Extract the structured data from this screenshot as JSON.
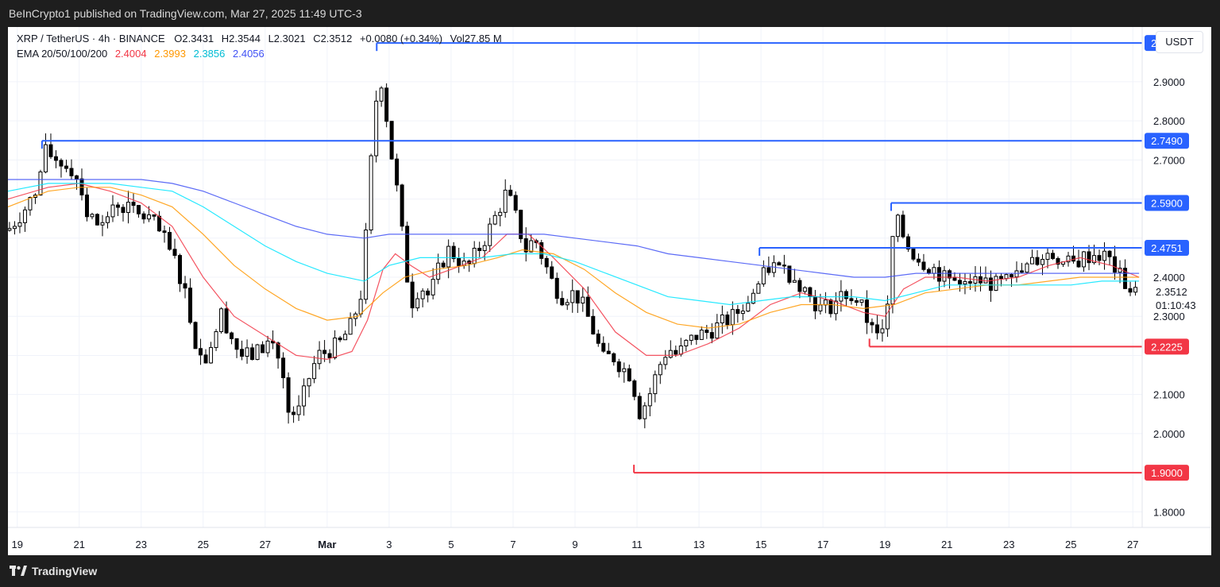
{
  "header": {
    "published": "BeInCrypto1 published on TradingView.com, Mar 27, 2025 11:49 UTC-3"
  },
  "legend": {
    "symbol": "XRP / TetherUS · 4h · BINANCE",
    "open_label": "O",
    "open": "2.3431",
    "high_label": "H",
    "high": "2.3544",
    "low_label": "L",
    "low": "2.3021",
    "close_label": "C",
    "close": "2.3512",
    "change": "+0.0080 (+0.34%)",
    "vol_label": "Vol",
    "vol": "27.85 M",
    "ema_label": "EMA 20/50/100/200",
    "ema20": "2.4004",
    "ema50": "2.3993",
    "ema100": "2.3856",
    "ema200": "2.4056"
  },
  "currency": "USDT",
  "footer": {
    "brand": "TradingView"
  },
  "colors": {
    "up": "#ffffff",
    "down": "#000000",
    "ema20": "#f23645",
    "ema50": "#ff9800",
    "ema100": "#00e5ff",
    "ema200": "#3f51f5",
    "resistance": "#2962ff",
    "support": "#f23645"
  },
  "chart_data": {
    "type": "line",
    "title": "",
    "xlabel": "",
    "ylabel": "",
    "ylim": [
      1.76,
      3.04
    ],
    "y_ticks": [
      "2.9000",
      "2.8000",
      "2.7000",
      "2.6000",
      "2.5000",
      "2.4000",
      "2.3000",
      "2.2000",
      "2.1000",
      "2.0000",
      "1.9000",
      "1.8000"
    ],
    "x_ticks": [
      "19",
      "21",
      "23",
      "25",
      "27",
      "Mar",
      "3",
      "5",
      "7",
      "9",
      "11",
      "13",
      "15",
      "17",
      "19",
      "21",
      "23",
      "25",
      "27"
    ],
    "x_tick_days": [
      -10,
      -8,
      -6,
      -4,
      -2,
      0,
      2,
      4,
      6,
      8,
      10,
      12,
      14,
      16,
      18,
      20,
      22,
      24,
      26
    ],
    "x_range_days": [
      -10.3,
      26.3
    ],
    "last_price": "2.3512",
    "countdown": "01:10:43",
    "levels": [
      {
        "value": 2.999,
        "label": "2.9990",
        "type": "resistance",
        "from_day": 1.6
      },
      {
        "value": 2.749,
        "label": "2.7490",
        "type": "resistance",
        "from_day": -9.2
      },
      {
        "value": 2.59,
        "label": "2.5900",
        "type": "resistance",
        "from_day": 18.2
      },
      {
        "value": 2.4751,
        "label": "2.4751",
        "type": "resistance",
        "from_day": 13.95
      },
      {
        "value": 2.2225,
        "label": "2.2225",
        "type": "support",
        "from_day": 17.5
      },
      {
        "value": 1.9,
        "label": "1.9000",
        "type": "support",
        "from_day": 9.9
      }
    ],
    "price_path": [
      [
        -10.3,
        2.52
      ],
      [
        -9.8,
        2.57
      ],
      [
        -9.4,
        2.62
      ],
      [
        -9.1,
        2.72
      ],
      [
        -8.7,
        2.7
      ],
      [
        -8.3,
        2.68
      ],
      [
        -8.0,
        2.65
      ],
      [
        -7.7,
        2.55
      ],
      [
        -7.3,
        2.53
      ],
      [
        -6.9,
        2.59
      ],
      [
        -6.5,
        2.58
      ],
      [
        -6.1,
        2.56
      ],
      [
        -5.7,
        2.55
      ],
      [
        -5.3,
        2.5
      ],
      [
        -4.9,
        2.44
      ],
      [
        -4.6,
        2.37
      ],
      [
        -4.3,
        2.25
      ],
      [
        -4.0,
        2.18
      ],
      [
        -3.7,
        2.24
      ],
      [
        -3.4,
        2.31
      ],
      [
        -3.1,
        2.25
      ],
      [
        -2.8,
        2.2
      ],
      [
        -2.4,
        2.2
      ],
      [
        -2.1,
        2.22
      ],
      [
        -1.8,
        2.24
      ],
      [
        -1.5,
        2.18
      ],
      [
        -1.2,
        2.02
      ],
      [
        -0.9,
        2.06
      ],
      [
        -0.6,
        2.14
      ],
      [
        -0.3,
        2.2
      ],
      [
        0.0,
        2.21
      ],
      [
        0.4,
        2.23
      ],
      [
        0.8,
        2.28
      ],
      [
        1.1,
        2.36
      ],
      [
        1.3,
        2.55
      ],
      [
        1.5,
        2.8
      ],
      [
        1.7,
        2.93
      ],
      [
        1.9,
        2.82
      ],
      [
        2.1,
        2.7
      ],
      [
        2.3,
        2.6
      ],
      [
        2.5,
        2.45
      ],
      [
        2.7,
        2.33
      ],
      [
        3.0,
        2.38
      ],
      [
        3.3,
        2.35
      ],
      [
        3.6,
        2.42
      ],
      [
        3.9,
        2.47
      ],
      [
        4.2,
        2.45
      ],
      [
        4.5,
        2.42
      ],
      [
        4.8,
        2.46
      ],
      [
        5.1,
        2.5
      ],
      [
        5.4,
        2.55
      ],
      [
        5.8,
        2.62
      ],
      [
        6.1,
        2.55
      ],
      [
        6.4,
        2.47
      ],
      [
        6.7,
        2.5
      ],
      [
        7.0,
        2.44
      ],
      [
        7.3,
        2.38
      ],
      [
        7.6,
        2.35
      ],
      [
        8.0,
        2.36
      ],
      [
        8.3,
        2.32
      ],
      [
        8.6,
        2.26
      ],
      [
        8.9,
        2.19
      ],
      [
        9.2,
        2.2
      ],
      [
        9.5,
        2.17
      ],
      [
        9.8,
        2.15
      ],
      [
        10.1,
        2.05
      ],
      [
        10.4,
        2.1
      ],
      [
        10.7,
        2.17
      ],
      [
        11.0,
        2.22
      ],
      [
        11.3,
        2.2
      ],
      [
        11.6,
        2.23
      ],
      [
        11.9,
        2.25
      ],
      [
        12.3,
        2.26
      ],
      [
        12.7,
        2.28
      ],
      [
        13.1,
        2.3
      ],
      [
        13.5,
        2.33
      ],
      [
        13.9,
        2.38
      ],
      [
        14.3,
        2.43
      ],
      [
        14.7,
        2.42
      ],
      [
        15.1,
        2.4
      ],
      [
        15.5,
        2.36
      ],
      [
        15.9,
        2.32
      ],
      [
        16.3,
        2.33
      ],
      [
        16.7,
        2.36
      ],
      [
        17.1,
        2.34
      ],
      [
        17.5,
        2.28
      ],
      [
        17.8,
        2.25
      ],
      [
        18.1,
        2.32
      ],
      [
        18.3,
        2.56
      ],
      [
        18.5,
        2.52
      ],
      [
        18.8,
        2.47
      ],
      [
        19.2,
        2.44
      ],
      [
        19.6,
        2.42
      ],
      [
        20.0,
        2.39
      ],
      [
        20.4,
        2.4
      ],
      [
        20.8,
        2.39
      ],
      [
        21.2,
        2.39
      ],
      [
        21.6,
        2.38
      ],
      [
        22.0,
        2.39
      ],
      [
        22.4,
        2.41
      ],
      [
        22.8,
        2.44
      ],
      [
        23.2,
        2.46
      ],
      [
        23.6,
        2.45
      ],
      [
        24.0,
        2.43
      ],
      [
        24.4,
        2.45
      ],
      [
        24.8,
        2.46
      ],
      [
        25.2,
        2.45
      ],
      [
        25.6,
        2.4
      ],
      [
        25.9,
        2.37
      ],
      [
        26.2,
        2.35
      ]
    ],
    "series": [
      {
        "name": "EMA 20",
        "color_key": "ema20",
        "values": [
          [
            -10.3,
            2.6
          ],
          [
            -9.0,
            2.63
          ],
          [
            -8.0,
            2.64
          ],
          [
            -7.0,
            2.62
          ],
          [
            -6.0,
            2.59
          ],
          [
            -5.0,
            2.53
          ],
          [
            -4.0,
            2.4
          ],
          [
            -3.0,
            2.3
          ],
          [
            -2.0,
            2.25
          ],
          [
            -1.0,
            2.2
          ],
          [
            0.0,
            2.19
          ],
          [
            0.8,
            2.21
          ],
          [
            1.3,
            2.29
          ],
          [
            1.8,
            2.42
          ],
          [
            2.2,
            2.46
          ],
          [
            2.7,
            2.43
          ],
          [
            3.3,
            2.4
          ],
          [
            4.0,
            2.42
          ],
          [
            5.0,
            2.45
          ],
          [
            5.8,
            2.51
          ],
          [
            6.5,
            2.51
          ],
          [
            7.3,
            2.45
          ],
          [
            8.3,
            2.37
          ],
          [
            9.3,
            2.26
          ],
          [
            10.3,
            2.2
          ],
          [
            11.3,
            2.2
          ],
          [
            12.3,
            2.23
          ],
          [
            13.3,
            2.27
          ],
          [
            14.3,
            2.33
          ],
          [
            15.3,
            2.36
          ],
          [
            16.3,
            2.34
          ],
          [
            17.3,
            2.31
          ],
          [
            18.0,
            2.3
          ],
          [
            18.6,
            2.37
          ],
          [
            19.3,
            2.4
          ],
          [
            20.3,
            2.4
          ],
          [
            21.3,
            2.39
          ],
          [
            22.3,
            2.4
          ],
          [
            23.3,
            2.43
          ],
          [
            24.3,
            2.45
          ],
          [
            25.3,
            2.43
          ],
          [
            26.2,
            2.4
          ]
        ]
      },
      {
        "name": "EMA 50",
        "color_key": "ema50",
        "values": [
          [
            -10.3,
            2.58
          ],
          [
            -9.0,
            2.62
          ],
          [
            -8.0,
            2.63
          ],
          [
            -7.0,
            2.63
          ],
          [
            -6.0,
            2.61
          ],
          [
            -5.0,
            2.58
          ],
          [
            -4.0,
            2.51
          ],
          [
            -3.0,
            2.43
          ],
          [
            -2.0,
            2.37
          ],
          [
            -1.0,
            2.32
          ],
          [
            0.0,
            2.29
          ],
          [
            1.0,
            2.3
          ],
          [
            1.8,
            2.36
          ],
          [
            2.5,
            2.4
          ],
          [
            3.5,
            2.42
          ],
          [
            4.5,
            2.43
          ],
          [
            5.5,
            2.45
          ],
          [
            6.3,
            2.47
          ],
          [
            7.3,
            2.46
          ],
          [
            8.3,
            2.42
          ],
          [
            9.3,
            2.36
          ],
          [
            10.3,
            2.31
          ],
          [
            11.3,
            2.28
          ],
          [
            12.3,
            2.27
          ],
          [
            13.3,
            2.28
          ],
          [
            14.3,
            2.31
          ],
          [
            15.3,
            2.33
          ],
          [
            16.3,
            2.33
          ],
          [
            17.3,
            2.32
          ],
          [
            18.3,
            2.33
          ],
          [
            19.3,
            2.36
          ],
          [
            20.3,
            2.37
          ],
          [
            21.3,
            2.38
          ],
          [
            22.3,
            2.38
          ],
          [
            23.3,
            2.39
          ],
          [
            24.3,
            2.4
          ],
          [
            25.3,
            2.4
          ],
          [
            26.2,
            2.4
          ]
        ]
      },
      {
        "name": "EMA 100",
        "color_key": "ema100",
        "values": [
          [
            -10.3,
            2.62
          ],
          [
            -9.0,
            2.64
          ],
          [
            -8.0,
            2.64
          ],
          [
            -7.0,
            2.64
          ],
          [
            -6.0,
            2.63
          ],
          [
            -5.0,
            2.62
          ],
          [
            -4.0,
            2.58
          ],
          [
            -3.0,
            2.53
          ],
          [
            -2.0,
            2.48
          ],
          [
            -1.0,
            2.44
          ],
          [
            0.0,
            2.41
          ],
          [
            1.2,
            2.39
          ],
          [
            2.0,
            2.43
          ],
          [
            3.0,
            2.45
          ],
          [
            4.0,
            2.45
          ],
          [
            5.0,
            2.45
          ],
          [
            6.0,
            2.46
          ],
          [
            7.0,
            2.46
          ],
          [
            8.0,
            2.44
          ],
          [
            9.0,
            2.41
          ],
          [
            10.0,
            2.38
          ],
          [
            11.0,
            2.35
          ],
          [
            12.0,
            2.34
          ],
          [
            13.0,
            2.33
          ],
          [
            14.0,
            2.34
          ],
          [
            15.0,
            2.35
          ],
          [
            16.0,
            2.35
          ],
          [
            17.0,
            2.35
          ],
          [
            18.0,
            2.34
          ],
          [
            19.0,
            2.36
          ],
          [
            20.0,
            2.38
          ],
          [
            21.0,
            2.38
          ],
          [
            22.0,
            2.38
          ],
          [
            23.0,
            2.38
          ],
          [
            24.0,
            2.38
          ],
          [
            25.0,
            2.39
          ],
          [
            26.2,
            2.39
          ]
        ]
      },
      {
        "name": "EMA 200",
        "color_key": "ema200",
        "values": [
          [
            -10.3,
            2.65
          ],
          [
            -9.0,
            2.65
          ],
          [
            -8.0,
            2.65
          ],
          [
            -7.0,
            2.65
          ],
          [
            -6.0,
            2.65
          ],
          [
            -5.0,
            2.64
          ],
          [
            -4.0,
            2.62
          ],
          [
            -3.0,
            2.59
          ],
          [
            -2.0,
            2.56
          ],
          [
            -1.0,
            2.53
          ],
          [
            0.0,
            2.51
          ],
          [
            1.2,
            2.5
          ],
          [
            2.0,
            2.51
          ],
          [
            3.0,
            2.51
          ],
          [
            4.0,
            2.51
          ],
          [
            5.0,
            2.51
          ],
          [
            6.0,
            2.51
          ],
          [
            7.0,
            2.51
          ],
          [
            8.0,
            2.5
          ],
          [
            9.0,
            2.49
          ],
          [
            10.0,
            2.48
          ],
          [
            11.0,
            2.46
          ],
          [
            12.0,
            2.45
          ],
          [
            13.0,
            2.44
          ],
          [
            14.0,
            2.43
          ],
          [
            15.0,
            2.42
          ],
          [
            16.0,
            2.41
          ],
          [
            17.0,
            2.4
          ],
          [
            18.0,
            2.4
          ],
          [
            19.0,
            2.41
          ],
          [
            20.0,
            2.41
          ],
          [
            21.0,
            2.41
          ],
          [
            22.0,
            2.41
          ],
          [
            23.0,
            2.41
          ],
          [
            24.0,
            2.41
          ],
          [
            25.0,
            2.41
          ],
          [
            26.2,
            2.41
          ]
        ]
      }
    ]
  }
}
